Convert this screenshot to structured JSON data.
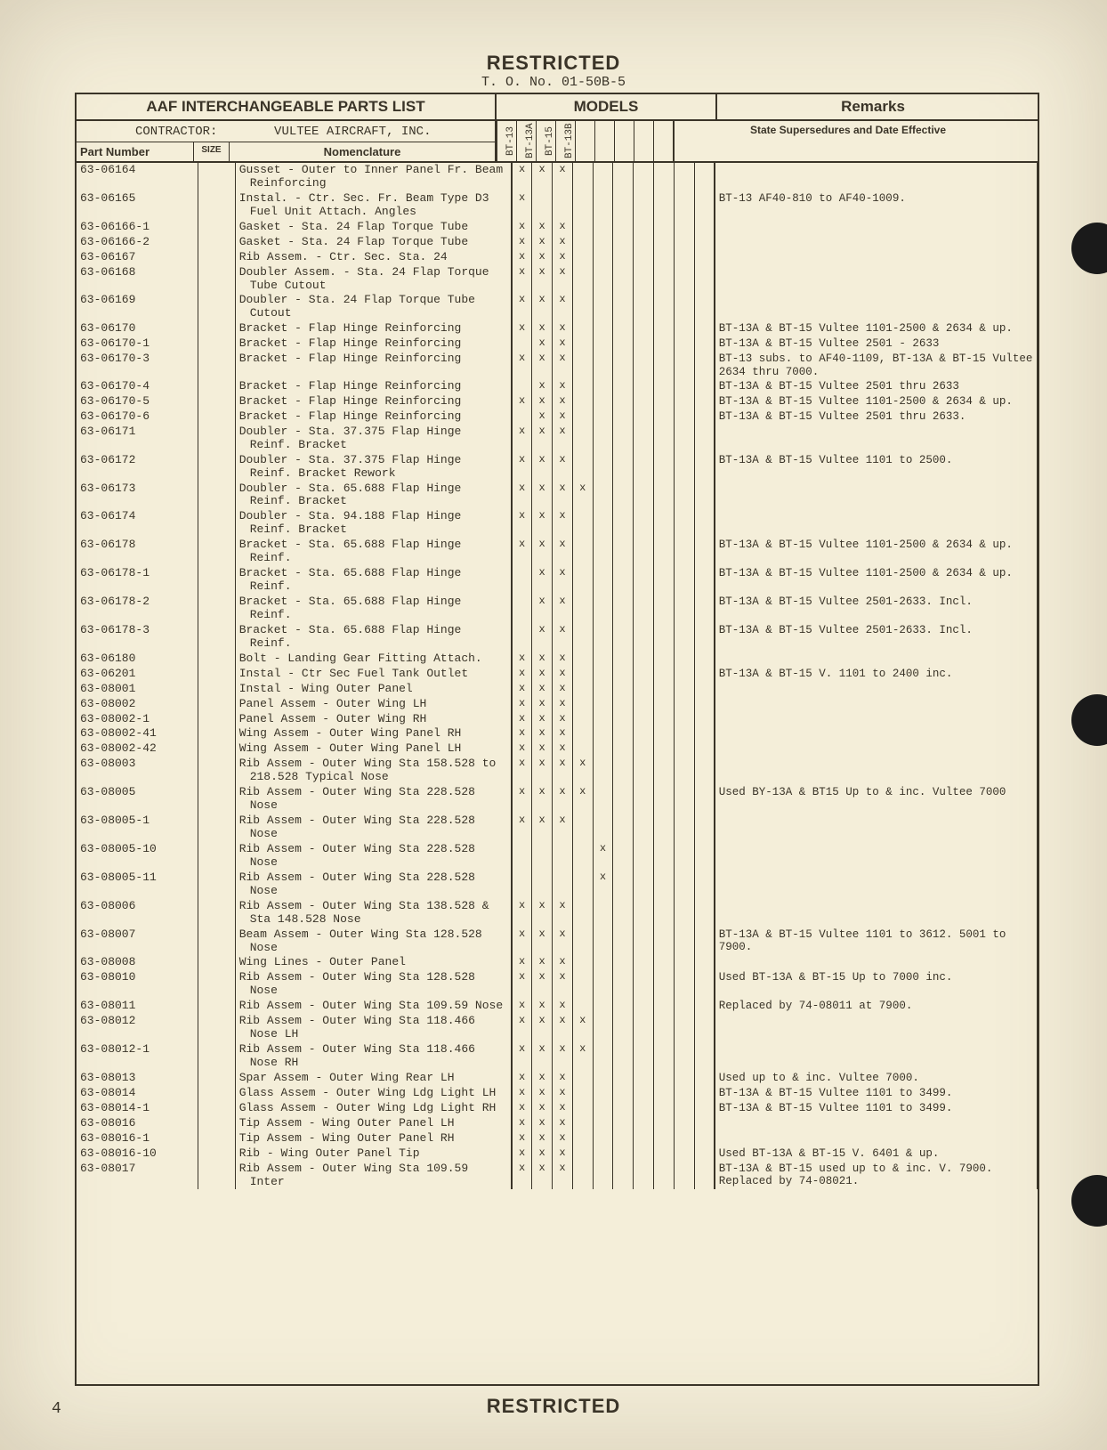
{
  "classification": "RESTRICTED",
  "to_number": "T. O. No. 01-50B-5",
  "page_number": "4",
  "title": "AAF INTERCHANGEABLE PARTS LIST",
  "models_label": "MODELS",
  "remarks_label": "Remarks",
  "remarks_sub": "State Supersedures and Date Effective",
  "contractor_label": "CONTRACTOR:",
  "contractor_value": "VULTEE AIRCRAFT, INC.",
  "col_part": "Part Number",
  "col_size": "SIZE",
  "col_nomen": "Nomenclature",
  "model_headers": [
    "BT-13",
    "BT-13A",
    "BT-15",
    "BT-13B",
    "",
    "",
    "",
    "",
    "",
    ""
  ],
  "rows": [
    {
      "pn": "63-06164",
      "nom": "Gusset - Outer to Inner Panel Fr. Beam Reinforcing",
      "m": [
        "x",
        "x",
        "x",
        "",
        "",
        "",
        "",
        "",
        "",
        ""
      ],
      "rem": ""
    },
    {
      "pn": "63-06165",
      "nom": "Instal. - Ctr. Sec. Fr. Beam Type D3 Fuel Unit Attach. Angles",
      "m": [
        "x",
        "",
        "",
        "",
        "",
        "",
        "",
        "",
        "",
        ""
      ],
      "rem": "BT-13 AF40-810 to AF40-1009."
    },
    {
      "pn": "63-06166-1",
      "nom": "Gasket - Sta. 24 Flap Torque Tube",
      "m": [
        "x",
        "x",
        "x",
        "",
        "",
        "",
        "",
        "",
        "",
        ""
      ],
      "rem": ""
    },
    {
      "pn": "63-06166-2",
      "nom": "Gasket - Sta. 24 Flap Torque Tube",
      "m": [
        "x",
        "x",
        "x",
        "",
        "",
        "",
        "",
        "",
        "",
        ""
      ],
      "rem": ""
    },
    {
      "pn": "63-06167",
      "nom": "Rib Assem. - Ctr. Sec. Sta. 24",
      "m": [
        "x",
        "x",
        "x",
        "",
        "",
        "",
        "",
        "",
        "",
        ""
      ],
      "rem": ""
    },
    {
      "pn": "63-06168",
      "nom": "Doubler Assem. - Sta. 24 Flap Torque Tube Cutout",
      "m": [
        "x",
        "x",
        "x",
        "",
        "",
        "",
        "",
        "",
        "",
        ""
      ],
      "rem": ""
    },
    {
      "pn": "63-06169",
      "nom": "Doubler - Sta. 24 Flap Torque Tube Cutout",
      "m": [
        "x",
        "x",
        "x",
        "",
        "",
        "",
        "",
        "",
        "",
        ""
      ],
      "rem": ""
    },
    {
      "pn": "63-06170",
      "nom": "Bracket - Flap Hinge Reinforcing",
      "m": [
        "x",
        "x",
        "x",
        "",
        "",
        "",
        "",
        "",
        "",
        ""
      ],
      "rem": "BT-13A & BT-15 Vultee 1101-2500 & 2634 & up."
    },
    {
      "pn": "63-06170-1",
      "nom": "Bracket - Flap Hinge Reinforcing",
      "m": [
        "",
        "x",
        "x",
        "",
        "",
        "",
        "",
        "",
        "",
        ""
      ],
      "rem": "BT-13A & BT-15 Vultee 2501 - 2633"
    },
    {
      "pn": "63-06170-3",
      "nom": "Bracket - Flap Hinge Reinforcing",
      "m": [
        "x",
        "x",
        "x",
        "",
        "",
        "",
        "",
        "",
        "",
        ""
      ],
      "rem": "BT-13 subs. to AF40-1109, BT-13A & BT-15 Vultee 2634 thru 7000."
    },
    {
      "pn": "63-06170-4",
      "nom": "Bracket - Flap Hinge Reinforcing",
      "m": [
        "",
        "x",
        "x",
        "",
        "",
        "",
        "",
        "",
        "",
        ""
      ],
      "rem": "BT-13A & BT-15 Vultee 2501 thru 2633"
    },
    {
      "pn": "63-06170-5",
      "nom": "Bracket - Flap Hinge Reinforcing",
      "m": [
        "x",
        "x",
        "x",
        "",
        "",
        "",
        "",
        "",
        "",
        ""
      ],
      "rem": "BT-13A & BT-15 Vultee 1101-2500 & 2634 & up."
    },
    {
      "pn": "63-06170-6",
      "nom": "Bracket - Flap Hinge Reinforcing",
      "m": [
        "",
        "x",
        "x",
        "",
        "",
        "",
        "",
        "",
        "",
        ""
      ],
      "rem": "BT-13A & BT-15 Vultee 2501 thru 2633."
    },
    {
      "pn": "63-06171",
      "nom": "Doubler - Sta. 37.375 Flap Hinge Reinf. Bracket",
      "m": [
        "x",
        "x",
        "x",
        "",
        "",
        "",
        "",
        "",
        "",
        ""
      ],
      "rem": ""
    },
    {
      "pn": "63-06172",
      "nom": "Doubler - Sta. 37.375 Flap Hinge Reinf. Bracket Rework",
      "m": [
        "x",
        "x",
        "x",
        "",
        "",
        "",
        "",
        "",
        "",
        ""
      ],
      "rem": "BT-13A & BT-15 Vultee 1101 to 2500."
    },
    {
      "pn": "63-06173",
      "nom": "Doubler - Sta. 65.688 Flap Hinge Reinf. Bracket",
      "m": [
        "x",
        "x",
        "x",
        "x",
        "",
        "",
        "",
        "",
        "",
        ""
      ],
      "rem": ""
    },
    {
      "pn": "63-06174",
      "nom": "Doubler - Sta. 94.188 Flap Hinge Reinf. Bracket",
      "m": [
        "x",
        "x",
        "x",
        "",
        "",
        "",
        "",
        "",
        "",
        ""
      ],
      "rem": ""
    },
    {
      "pn": "63-06178",
      "nom": "Bracket - Sta. 65.688 Flap Hinge Reinf.",
      "m": [
        "x",
        "x",
        "x",
        "",
        "",
        "",
        "",
        "",
        "",
        ""
      ],
      "rem": "BT-13A & BT-15 Vultee 1101-2500 & 2634 & up."
    },
    {
      "pn": "63-06178-1",
      "nom": "Bracket - Sta. 65.688 Flap Hinge Reinf.",
      "m": [
        "",
        "x",
        "x",
        "",
        "",
        "",
        "",
        "",
        "",
        ""
      ],
      "rem": "BT-13A & BT-15 Vultee 1101-2500 & 2634 & up."
    },
    {
      "pn": "63-06178-2",
      "nom": "Bracket - Sta. 65.688 Flap Hinge Reinf.",
      "m": [
        "",
        "x",
        "x",
        "",
        "",
        "",
        "",
        "",
        "",
        ""
      ],
      "rem": "BT-13A & BT-15 Vultee 2501-2633. Incl."
    },
    {
      "pn": "63-06178-3",
      "nom": "Bracket - Sta. 65.688 Flap Hinge Reinf.",
      "m": [
        "",
        "x",
        "x",
        "",
        "",
        "",
        "",
        "",
        "",
        ""
      ],
      "rem": "BT-13A & BT-15 Vultee 2501-2633. Incl."
    },
    {
      "pn": "63-06180",
      "nom": "Bolt - Landing Gear Fitting Attach.",
      "m": [
        "x",
        "x",
        "x",
        "",
        "",
        "",
        "",
        "",
        "",
        ""
      ],
      "rem": ""
    },
    {
      "pn": "63-06201",
      "nom": "Instal - Ctr Sec Fuel Tank Outlet",
      "m": [
        "x",
        "x",
        "x",
        "",
        "",
        "",
        "",
        "",
        "",
        ""
      ],
      "rem": "BT-13A & BT-15 V. 1101 to 2400 inc."
    },
    {
      "pn": "63-08001",
      "nom": "Instal - Wing Outer Panel",
      "m": [
        "x",
        "x",
        "x",
        "",
        "",
        "",
        "",
        "",
        "",
        ""
      ],
      "rem": ""
    },
    {
      "pn": "63-08002",
      "nom": "Panel Assem - Outer Wing LH",
      "m": [
        "x",
        "x",
        "x",
        "",
        "",
        "",
        "",
        "",
        "",
        ""
      ],
      "rem": ""
    },
    {
      "pn": "63-08002-1",
      "nom": "Panel Assem - Outer Wing RH",
      "m": [
        "x",
        "x",
        "x",
        "",
        "",
        "",
        "",
        "",
        "",
        ""
      ],
      "rem": ""
    },
    {
      "pn": "63-08002-41",
      "nom": "Wing Assem - Outer Wing Panel RH",
      "m": [
        "x",
        "x",
        "x",
        "",
        "",
        "",
        "",
        "",
        "",
        ""
      ],
      "rem": ""
    },
    {
      "pn": "63-08002-42",
      "nom": "Wing Assem - Outer Wing Panel LH",
      "m": [
        "x",
        "x",
        "x",
        "",
        "",
        "",
        "",
        "",
        "",
        ""
      ],
      "rem": ""
    },
    {
      "pn": "63-08003",
      "nom": "Rib Assem - Outer Wing Sta 158.528 to 218.528 Typical Nose",
      "m": [
        "x",
        "x",
        "x",
        "x",
        "",
        "",
        "",
        "",
        "",
        ""
      ],
      "rem": ""
    },
    {
      "pn": "63-08005",
      "nom": "Rib Assem - Outer Wing Sta 228.528 Nose",
      "m": [
        "x",
        "x",
        "x",
        "x",
        "",
        "",
        "",
        "",
        "",
        ""
      ],
      "rem": "Used BY-13A & BT15 Up to & inc. Vultee 7000"
    },
    {
      "pn": "63-08005-1",
      "nom": "Rib Assem - Outer Wing Sta 228.528 Nose",
      "m": [
        "x",
        "x",
        "x",
        "",
        "",
        "",
        "",
        "",
        "",
        ""
      ],
      "rem": ""
    },
    {
      "pn": "63-08005-10",
      "nom": "Rib Assem - Outer Wing Sta 228.528 Nose",
      "m": [
        "",
        "",
        "",
        "",
        "x",
        "",
        "",
        "",
        "",
        ""
      ],
      "rem": ""
    },
    {
      "pn": "63-08005-11",
      "nom": "Rib Assem - Outer Wing Sta 228.528 Nose",
      "m": [
        "",
        "",
        "",
        "",
        "x",
        "",
        "",
        "",
        "",
        ""
      ],
      "rem": ""
    },
    {
      "pn": "63-08006",
      "nom": "Rib Assem - Outer Wing Sta 138.528 & Sta 148.528 Nose",
      "m": [
        "x",
        "x",
        "x",
        "",
        "",
        "",
        "",
        "",
        "",
        ""
      ],
      "rem": ""
    },
    {
      "pn": "63-08007",
      "nom": "Beam Assem - Outer Wing Sta 128.528 Nose",
      "m": [
        "x",
        "x",
        "x",
        "",
        "",
        "",
        "",
        "",
        "",
        ""
      ],
      "rem": "BT-13A & BT-15 Vultee 1101 to 3612. 5001 to 7900."
    },
    {
      "pn": "63-08008",
      "nom": "Wing Lines - Outer Panel",
      "m": [
        "x",
        "x",
        "x",
        "",
        "",
        "",
        "",
        "",
        "",
        ""
      ],
      "rem": ""
    },
    {
      "pn": "63-08010",
      "nom": "Rib Assem - Outer Wing Sta 128.528 Nose",
      "m": [
        "x",
        "x",
        "x",
        "",
        "",
        "",
        "",
        "",
        "",
        ""
      ],
      "rem": "Used BT-13A & BT-15 Up to 7000 inc."
    },
    {
      "pn": "63-08011",
      "nom": "Rib Assem - Outer Wing Sta 109.59 Nose",
      "m": [
        "x",
        "x",
        "x",
        "",
        "",
        "",
        "",
        "",
        "",
        ""
      ],
      "rem": "Replaced by 74-08011 at 7900."
    },
    {
      "pn": "63-08012",
      "nom": "Rib Assem - Outer Wing Sta 118.466 Nose LH",
      "m": [
        "x",
        "x",
        "x",
        "x",
        "",
        "",
        "",
        "",
        "",
        ""
      ],
      "rem": ""
    },
    {
      "pn": "63-08012-1",
      "nom": "Rib Assem - Outer Wing Sta 118.466 Nose RH",
      "m": [
        "x",
        "x",
        "x",
        "x",
        "",
        "",
        "",
        "",
        "",
        ""
      ],
      "rem": ""
    },
    {
      "pn": "63-08013",
      "nom": "Spar Assem - Outer Wing Rear LH",
      "m": [
        "x",
        "x",
        "x",
        "",
        "",
        "",
        "",
        "",
        "",
        ""
      ],
      "rem": "Used up to & inc. Vultee 7000."
    },
    {
      "pn": "63-08014",
      "nom": "Glass Assem - Outer Wing Ldg Light LH",
      "m": [
        "x",
        "x",
        "x",
        "",
        "",
        "",
        "",
        "",
        "",
        ""
      ],
      "rem": "BT-13A & BT-15 Vultee 1101 to 3499."
    },
    {
      "pn": "63-08014-1",
      "nom": "Glass Assem - Outer Wing Ldg Light RH",
      "m": [
        "x",
        "x",
        "x",
        "",
        "",
        "",
        "",
        "",
        "",
        ""
      ],
      "rem": "BT-13A & BT-15 Vultee 1101 to 3499."
    },
    {
      "pn": "63-08016",
      "nom": "Tip Assem - Wing Outer Panel LH",
      "m": [
        "x",
        "x",
        "x",
        "",
        "",
        "",
        "",
        "",
        "",
        ""
      ],
      "rem": ""
    },
    {
      "pn": "63-08016-1",
      "nom": "Tip Assem - Wing Outer Panel RH",
      "m": [
        "x",
        "x",
        "x",
        "",
        "",
        "",
        "",
        "",
        "",
        ""
      ],
      "rem": ""
    },
    {
      "pn": "63-08016-10",
      "nom": "Rib - Wing Outer Panel Tip",
      "m": [
        "x",
        "x",
        "x",
        "",
        "",
        "",
        "",
        "",
        "",
        ""
      ],
      "rem": "Used BT-13A & BT-15 V. 6401 & up."
    },
    {
      "pn": "63-08017",
      "nom": "Rib Assem - Outer Wing Sta 109.59 Inter",
      "m": [
        "x",
        "x",
        "x",
        "",
        "",
        "",
        "",
        "",
        "",
        ""
      ],
      "rem": "BT-13A & BT-15 used up to & inc. V. 7900. Replaced by 74-08021."
    }
  ],
  "colors": {
    "paper": "#f4eed9",
    "ink": "#3a3428",
    "hole": "#1a1a1a",
    "bg": "#b8b0a4"
  }
}
